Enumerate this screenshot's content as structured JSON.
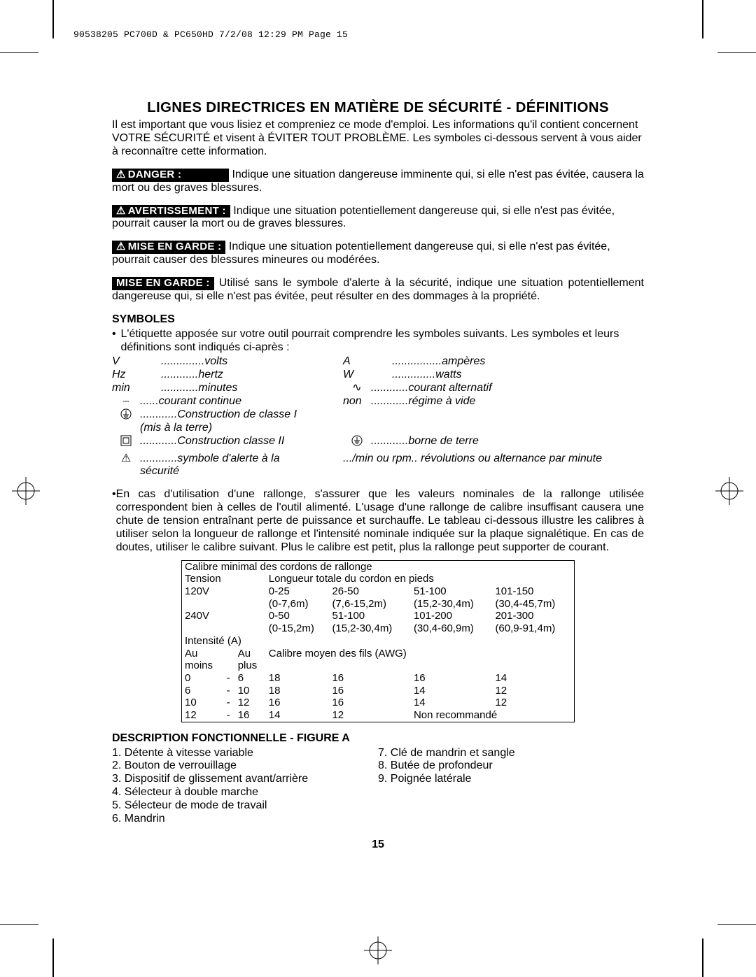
{
  "header": "90538205 PC700D & PC650HD  7/2/08  12:29 PM  Page 15",
  "title": "LIGNES DIRECTRICES EN MATIÈRE DE SÉCURITÉ - DÉFINITIONS",
  "intro": "Il est important que vous lisiez et compreniez ce mode d'emploi. Les informations qu'il contient concernent VOTRE SÉCURITÉ et visent à ÉVITER TOUT PROBLÈME. Les symboles ci-dessous servent à vous aider à reconnaître cette information.",
  "danger_label": "DANGER :",
  "danger_text": "Indique une situation dangereuse imminente qui, si elle n'est pas évitée, causera la mort ou des graves blessures.",
  "avert_label": "AVERTISSEMENT :",
  "avert_text": "Indique une situation potentiellement dangereuse qui, si elle n'est pas évitée, pourrait causer la mort ou de graves blessures.",
  "mise1_label": "MISE EN GARDE :",
  "mise1_text": "Indique une situation potentiellement dangereuse qui, si elle n'est pas évitée, pourrait causer des blessures mineures ou modérées.",
  "mise2_label": "MISE EN GARDE :",
  "mise2_text": "Utilisé sans le symbole d'alerte à la sécurité, indique une situation potentiellement dangereuse qui, si elle n'est pas évitée, peut résulter en des dommages à la propriété.",
  "symboles_head": "SYMBOLES",
  "symboles_intro": "L'étiquette apposée sur votre outil pourrait comprendre les symboles suivants.  Les symboles et leurs définitions sont indiqués ci-après :",
  "sym": {
    "v_l": "V",
    "v_r": "volts",
    "a_l": "A",
    "a_r": "ampères",
    "hz_l": "Hz",
    "hz_r": "hertz",
    "w_l": "W",
    "w_r": "watts",
    "min_l": "min",
    "min_r": "minutes",
    "ac_r": "courant alternatif",
    "dc_r": "courant continue",
    "non_l": "non",
    "non_r": "régime à vide",
    "c1_r": "Construction de classe I",
    "c1_r2": "(mis à la terre)",
    "c2_r": "Construction classe II",
    "bt_r": "borne de terre",
    "sa_r": "symbole d'alerte à la",
    "sa_r2": "sécurité",
    "rpm_l": ".../min ou rpm..",
    "rpm_r": "révolutions ou alternance par minute"
  },
  "rallonge_para": "En cas d'utilisation d'une rallonge, s'assurer que les valeurs nominales de la rallonge utilisée correspondent bien à celles de l'outil alimenté. L'usage d'une rallonge de calibre insuffisant causera une chute de tension entraînant perte de puissance et surchauffe. Le tableau ci-dessous illustre les calibres à utiliser selon la longueur de rallonge et l'intensité nominale indiquée sur la plaque signalétique. En cas de doutes, utiliser le calibre suivant. Plus le calibre est petit, plus la rallonge peut supporter de courant.",
  "table": {
    "title": "Calibre minimal des cordons de rallonge",
    "tension": "Tension",
    "longueur": "Longueur totale du cordon en pieds",
    "r120": "120V",
    "r120a": [
      "0-25",
      "26-50",
      "51-100",
      "101-150"
    ],
    "r120b": [
      "(0-7,6m)",
      "(7,6-15,2m)",
      "(15,2-30,4m)",
      "(30,4-45,7m)"
    ],
    "r240": "240V",
    "r240a": [
      "0-50",
      "51-100",
      "101-200",
      "201-300"
    ],
    "r240b": [
      "(0-15,2m)",
      "(15,2-30,4m)",
      "(30,4-60,9m)",
      "(60,9-91,4m)"
    ],
    "intensite": "Intensité (A)",
    "au1": "Au",
    "au2": "Au",
    "moins": "moins",
    "plus": "plus",
    "awg": "Calibre moyen des fils (AWG)",
    "rows": [
      [
        "0",
        "-",
        "6",
        "18",
        "16",
        "16",
        "14"
      ],
      [
        "6",
        "-",
        "10",
        "18",
        "16",
        "14",
        "12"
      ],
      [
        "10",
        "-",
        "12",
        "16",
        "16",
        "14",
        "12"
      ],
      [
        "12",
        "-",
        "16",
        "14",
        "12",
        "Non recommandé",
        ""
      ]
    ]
  },
  "desc_head": "DESCRIPTION FONCTIONNELLE - FIGURE A",
  "desc_left": [
    "1. Détente à vitesse variable",
    "2. Bouton de verrouillage",
    "3. Dispositif de glissement avant/arrière",
    "4. Sélecteur à double marche",
    "5. Sélecteur de mode de travail",
    "6. Mandrin"
  ],
  "desc_right": [
    "7. Clé de mandrin et sangle",
    "8. Butée de profondeur",
    "9. Poignée latérale"
  ],
  "page_num": "15"
}
